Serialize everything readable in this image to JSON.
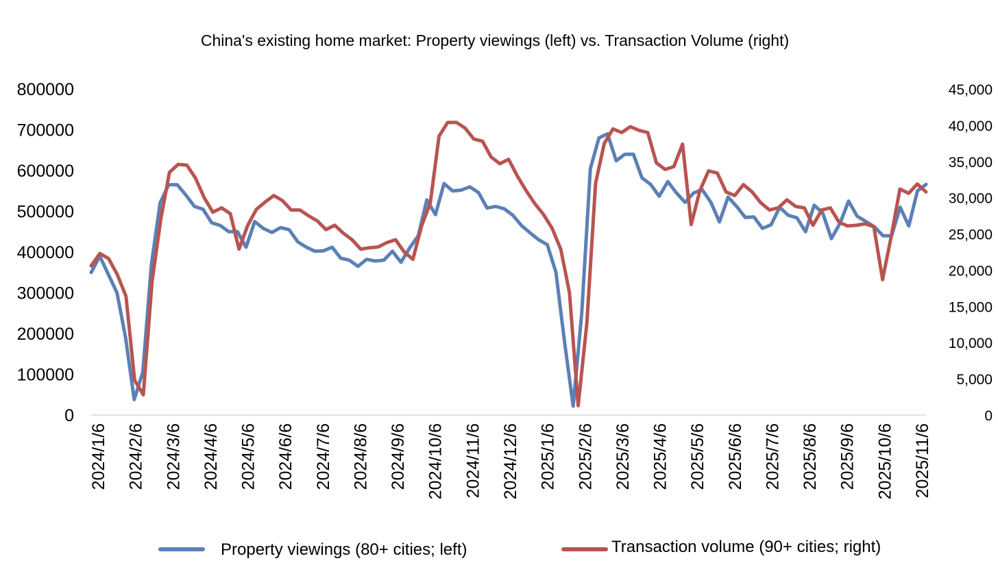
{
  "chart_data": {
    "type": "line",
    "title": "China's existing home market: Property viewings (left) vs. Transaction Volume (right)",
    "xlabel": "",
    "ylabel_left": "",
    "ylabel_right": "",
    "grid": false,
    "legend_position": "bottom",
    "x_tick_labels": [
      "2024/1/6",
      "2024/2/6",
      "2024/3/6",
      "2024/4/6",
      "2024/5/6",
      "2024/6/6",
      "2024/7/6",
      "2024/8/6",
      "2024/9/6",
      "2024/10/6",
      "2024/11/6",
      "2024/12/6",
      "2025/1/6",
      "2025/2/6",
      "2025/3/6",
      "2025/4/6",
      "2025/5/6",
      "2025/6/6",
      "2025/7/6",
      "2025/8/6",
      "2025/9/6",
      "2025/10/6",
      "2025/11/6"
    ],
    "y_left": {
      "min": 0,
      "max": 800000,
      "ticks": [
        0,
        100000,
        200000,
        300000,
        400000,
        500000,
        600000,
        700000,
        800000
      ],
      "tick_labels": [
        "0",
        "100000",
        "200000",
        "300000",
        "400000",
        "500000",
        "600000",
        "700000",
        "800000"
      ]
    },
    "y_right": {
      "min": 0,
      "max": 45000,
      "ticks": [
        0,
        5000,
        10000,
        15000,
        20000,
        25000,
        30000,
        35000,
        40000,
        45000
      ],
      "tick_labels": [
        "0",
        "5,000",
        "10,000",
        "15,000",
        "20,000",
        "25,000",
        "30,000",
        "35,000",
        "40,000",
        "45,000"
      ]
    },
    "series": [
      {
        "name": "Property viewings (80+ cities; left)",
        "axis": "left",
        "color": "#5b80b6",
        "values": [
          350000,
          390000,
          345000,
          300000,
          190000,
          38000,
          105000,
          370000,
          520000,
          565000,
          565000,
          540000,
          512000,
          505000,
          472000,
          465000,
          450000,
          450000,
          412000,
          475000,
          458000,
          448000,
          460000,
          455000,
          425000,
          412000,
          402000,
          403000,
          412000,
          385000,
          380000,
          365000,
          382000,
          378000,
          380000,
          402000,
          375000,
          410000,
          440000,
          528000,
          492000,
          568000,
          550000,
          552000,
          560000,
          546000,
          508000,
          512000,
          506000,
          490000,
          465000,
          447000,
          430000,
          418000,
          350000,
          180000,
          22000,
          250000,
          605000,
          680000,
          690000,
          624000,
          640000,
          640000,
          582000,
          566000,
          537000,
          573000,
          545000,
          522000,
          545000,
          553000,
          522000,
          474000,
          535000,
          512000,
          485000,
          486000,
          458000,
          467000,
          510000,
          490000,
          484000,
          450000,
          515000,
          496000,
          433000,
          470000,
          525000,
          488000,
          475000,
          462000,
          440000,
          440000,
          510000,
          464000,
          550000,
          566000
        ]
      },
      {
        "name": "Transaction volume (90+ cities; right)",
        "axis": "right",
        "color": "#b85450",
        "values": [
          20600,
          22300,
          21600,
          19400,
          16400,
          4800,
          2800,
          18400,
          27000,
          33500,
          34600,
          34500,
          32700,
          30000,
          28000,
          28600,
          27800,
          22900,
          26200,
          28400,
          29400,
          30300,
          29600,
          28300,
          28300,
          27500,
          26800,
          25600,
          26200,
          25100,
          24200,
          22900,
          23100,
          23200,
          23800,
          24200,
          22500,
          21500,
          26100,
          29300,
          38500,
          40400,
          40400,
          39600,
          38100,
          37800,
          35600,
          34700,
          35300,
          33000,
          31000,
          29200,
          27700,
          25800,
          22900,
          16900,
          1300,
          12700,
          32000,
          37500,
          39500,
          39000,
          39800,
          39300,
          39000,
          34800,
          33900,
          34300,
          37400,
          26300,
          31000,
          33700,
          33400,
          30800,
          30300,
          31800,
          30800,
          29300,
          28300,
          28600,
          29700,
          28800,
          28600,
          26200,
          28300,
          28600,
          26600,
          26100,
          26200,
          26400,
          26000,
          18700,
          24700,
          31200,
          30600,
          31900,
          30800
        ]
      }
    ],
    "legend": [
      {
        "label": "Property viewings (80+ cities; left)",
        "color": "#5b80b6"
      },
      {
        "label": "Transaction volume (90+ cities; right)",
        "color": "#b85450"
      }
    ]
  }
}
